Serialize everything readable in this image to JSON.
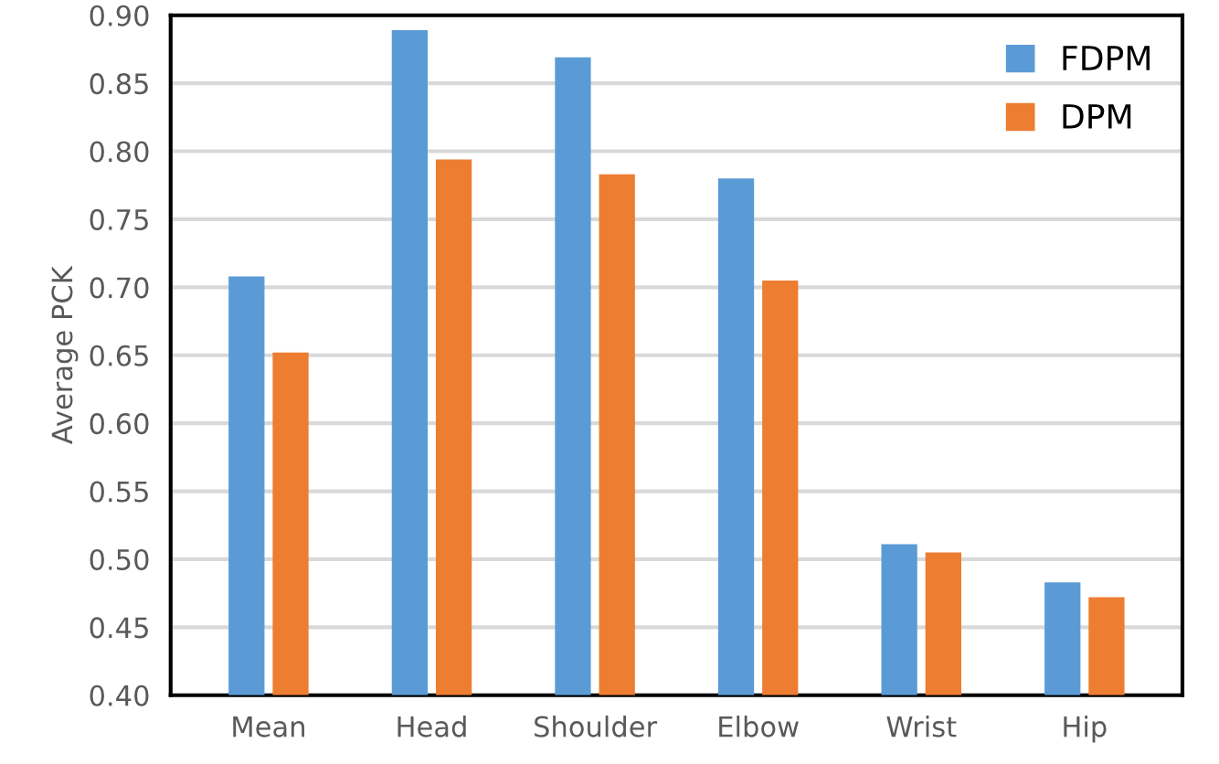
{
  "chart_data": {
    "type": "bar",
    "ylabel": "Average PCK",
    "categories": [
      "Mean",
      "Head",
      "Shoulder",
      "Elbow",
      "Wrist",
      "Hip"
    ],
    "series": [
      {
        "name": "FDPM",
        "color": "#5b9bd5",
        "values": [
          0.708,
          0.889,
          0.869,
          0.78,
          0.511,
          0.483
        ]
      },
      {
        "name": "DPM",
        "color": "#ed7d31",
        "values": [
          0.652,
          0.794,
          0.783,
          0.705,
          0.505,
          0.472
        ]
      }
    ],
    "ylim": [
      0.4,
      0.9
    ],
    "yticks": [
      {
        "value": 0.4,
        "label": "0.40"
      },
      {
        "value": 0.45,
        "label": "0.45"
      },
      {
        "value": 0.5,
        "label": "0.50"
      },
      {
        "value": 0.55,
        "label": "0.55"
      },
      {
        "value": 0.6,
        "label": "0.60"
      },
      {
        "value": 0.65,
        "label": "0.65"
      },
      {
        "value": 0.7,
        "label": "0.70"
      },
      {
        "value": 0.75,
        "label": "0.75"
      },
      {
        "value": 0.8,
        "label": "0.80"
      },
      {
        "value": 0.85,
        "label": "0.85"
      },
      {
        "value": 0.9,
        "label": "0.90"
      }
    ],
    "grid": "y",
    "legend": "top right"
  }
}
